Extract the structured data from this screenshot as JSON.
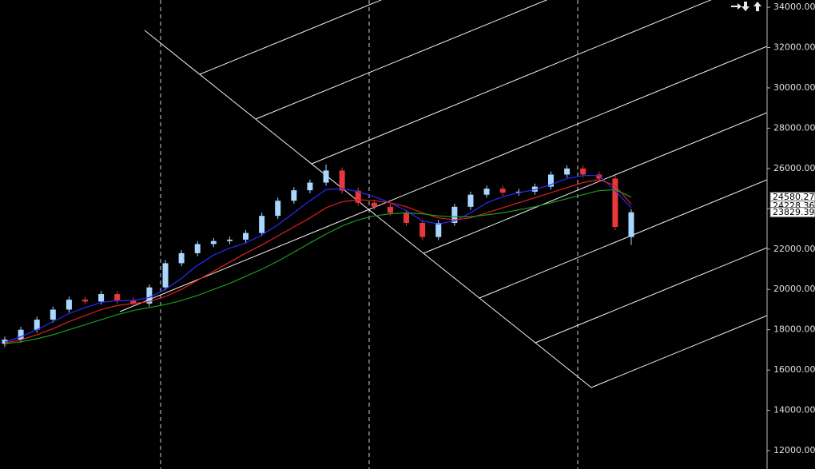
{
  "chart_data": {
    "type": "candlestick",
    "open": [
      17300,
      17510,
      18000,
      18500,
      19000,
      19490,
      19400,
      19770,
      19450,
      19300,
      20100,
      21300,
      21800,
      22250,
      22400,
      22470,
      22800,
      23650,
      24400,
      24920,
      25300,
      25900,
      24900,
      24300,
      24100,
      23800,
      23300,
      22600,
      23300,
      24100,
      24700,
      25000,
      24800,
      24850,
      25100,
      25700,
      26000,
      25700,
      25500,
      22600
    ],
    "high": [
      17660,
      18150,
      18650,
      19150,
      19640,
      19640,
      19920,
      19920,
      19600,
      20250,
      21450,
      21950,
      22400,
      22550,
      22620,
      22950,
      23800,
      24550,
      25070,
      25450,
      26200,
      26050,
      25050,
      24450,
      24250,
      23950,
      23450,
      23450,
      24250,
      24850,
      25150,
      25150,
      25000,
      25250,
      25850,
      26150,
      26150,
      25850,
      25650,
      23980
    ],
    "low": [
      17150,
      17360,
      17850,
      18350,
      18850,
      19250,
      19250,
      19300,
      19150,
      19150,
      19950,
      21150,
      21650,
      22100,
      22250,
      22320,
      22650,
      23500,
      24250,
      24770,
      25150,
      24750,
      24150,
      23950,
      23650,
      23150,
      22450,
      22450,
      23150,
      23950,
      24550,
      24650,
      24650,
      24700,
      24950,
      25550,
      25550,
      25350,
      22950,
      22200
    ],
    "close": [
      17510,
      18000,
      18500,
      19000,
      19490,
      19400,
      19770,
      19450,
      19300,
      20100,
      21300,
      21800,
      22250,
      22400,
      22470,
      22800,
      23650,
      24400,
      24920,
      25300,
      25900,
      24900,
      24300,
      24100,
      23800,
      23300,
      22600,
      23300,
      24100,
      24700,
      25000,
      24800,
      24850,
      25100,
      25700,
      26000,
      25700,
      25500,
      23100,
      23829.39
    ],
    "up_color": "#a8d8ff",
    "down_color": "#e8383a",
    "series": [
      {
        "color": "#2a2aff",
        "values": [
          17400,
          17650,
          18000,
          18400,
          18800,
          19100,
          19350,
          19450,
          19450,
          19600,
          20000,
          20550,
          21200,
          21700,
          22050,
          22300,
          22700,
          23200,
          23800,
          24400,
          24950,
          25000,
          24850,
          24600,
          24300,
          23900,
          23400,
          23250,
          23400,
          23800,
          24300,
          24600,
          24800,
          24950,
          25200,
          25500,
          25650,
          25650,
          24900,
          24050
        ]
      },
      {
        "color": "#e02020",
        "values": [
          17350,
          17500,
          17750,
          18050,
          18400,
          18700,
          19000,
          19200,
          19300,
          19400,
          19650,
          20000,
          20450,
          20900,
          21350,
          21800,
          22200,
          22650,
          23100,
          23550,
          24050,
          24350,
          24450,
          24400,
          24300,
          24100,
          23800,
          23550,
          23450,
          23550,
          23800,
          24050,
          24300,
          24550,
          24800,
          25050,
          25300,
          25450,
          25150,
          24228.36
        ]
      },
      {
        "color": "#1f9a1f",
        "values": [
          17300,
          17400,
          17550,
          17750,
          18000,
          18250,
          18500,
          18750,
          18950,
          19100,
          19250,
          19450,
          19700,
          20000,
          20300,
          20650,
          21000,
          21400,
          21850,
          22300,
          22750,
          23150,
          23450,
          23650,
          23750,
          23800,
          23750,
          23650,
          23600,
          23600,
          23700,
          23800,
          23950,
          24100,
          24300,
          24500,
          24700,
          24900,
          24950,
          24580.27
        ]
      }
    ],
    "ylim": [
      11090,
      34360
    ],
    "yticks": [
      {
        "value": 12000,
        "label": "12000.00"
      },
      {
        "value": 14000,
        "label": "14000.00"
      },
      {
        "value": 16000,
        "label": "16000.00"
      },
      {
        "value": 18000,
        "label": "18000.00"
      },
      {
        "value": 20000,
        "label": "20000.00"
      },
      {
        "value": 22000,
        "label": "22000.00"
      },
      {
        "value": 24000,
        "label": "24000.00"
      },
      {
        "value": 26000,
        "label": "26000.00"
      },
      {
        "value": 28000,
        "label": "28000.00"
      },
      {
        "value": 30000,
        "label": "30000.00"
      },
      {
        "value": 32000,
        "label": "32000.00"
      },
      {
        "value": 34000,
        "label": "34000.00"
      }
    ]
  }
}
